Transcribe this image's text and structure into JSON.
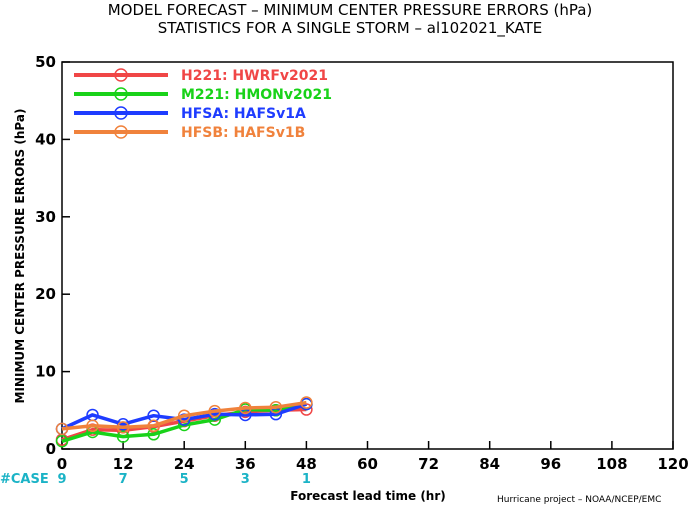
{
  "chart_data": {
    "type": "line",
    "title": "MODEL FORECAST – MINIMUM CENTER PRESSURE ERRORS (hPa)",
    "subtitle": "STATISTICS FOR A SINGLE STORM – al102021_KATE",
    "xlabel": "Forecast lead time (hr)",
    "ylabel": "MINIMUM CENTER PRESSURE ERRORS (hPa)",
    "xlim": [
      0,
      120
    ],
    "ylim": [
      0,
      50
    ],
    "x_ticks": [
      0,
      12,
      24,
      36,
      48,
      60,
      72,
      84,
      96,
      108,
      120
    ],
    "y_ticks": [
      0,
      10,
      20,
      30,
      40,
      50
    ],
    "grid": false,
    "legend_position": "top-left",
    "case_label": "#CASE",
    "case_counts": [
      {
        "x": 0,
        "n": "9"
      },
      {
        "x": 12,
        "n": "7"
      },
      {
        "x": 24,
        "n": "5"
      },
      {
        "x": 36,
        "n": "3"
      },
      {
        "x": 48,
        "n": "1"
      }
    ],
    "x": [
      0,
      6,
      12,
      18,
      24,
      30,
      36,
      42,
      48
    ],
    "series": [
      {
        "name": "H221: HWRFv2021",
        "color": "#f04646",
        "values": [
          1.2,
          2.5,
          2.4,
          2.9,
          3.6,
          4.3,
          4.8,
          5.0,
          5.1
        ]
      },
      {
        "name": "M221: HMONv2021",
        "color": "#19d219",
        "values": [
          1.0,
          2.2,
          1.6,
          1.9,
          3.1,
          3.8,
          5.1,
          5.0,
          5.8
        ]
      },
      {
        "name": "HFSA: HAFSv1A",
        "color": "#1e3cff",
        "values": [
          2.6,
          4.4,
          3.2,
          4.3,
          3.8,
          4.5,
          4.4,
          4.5,
          5.8
        ]
      },
      {
        "name": "HFSB: HAFSv1B",
        "color": "#f0823c",
        "values": [
          2.6,
          3.0,
          2.8,
          3.0,
          4.3,
          4.9,
          5.3,
          5.4,
          6.0
        ]
      }
    ]
  },
  "credit": "Hurricane project – NOAA/NCEP/EMC"
}
